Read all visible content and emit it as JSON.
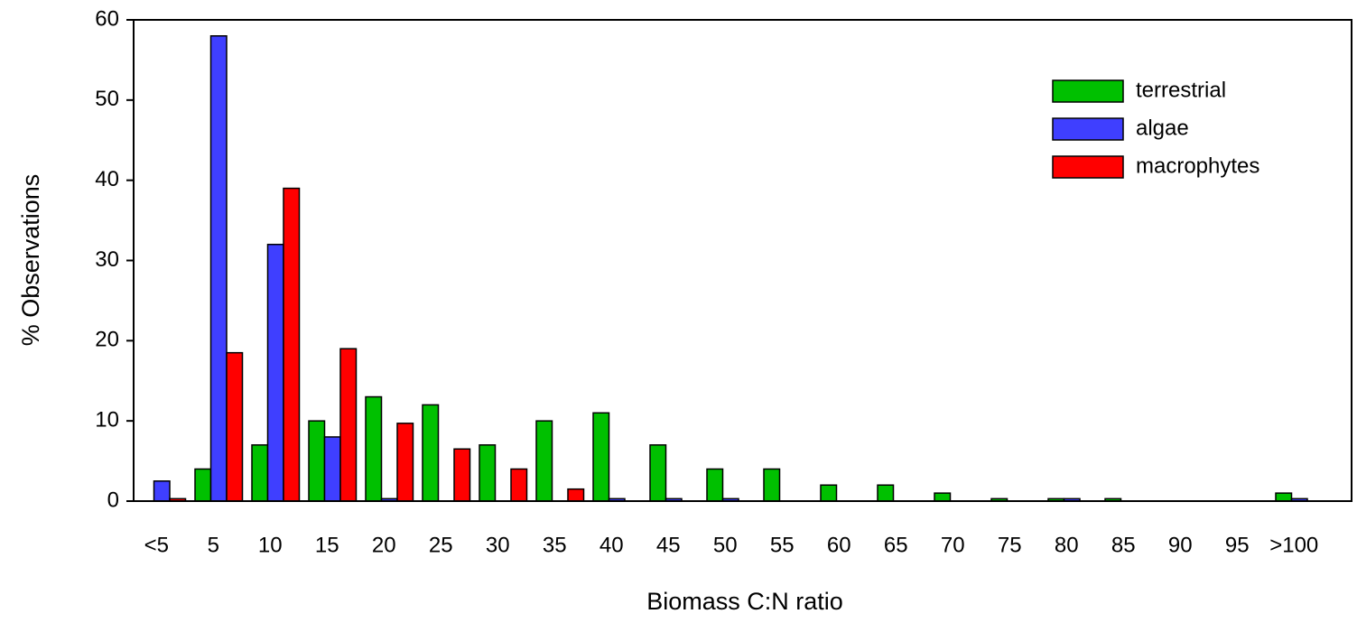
{
  "chart_data": {
    "type": "bar",
    "x_label": "Biomass C:N ratio",
    "y_label": "% Observations",
    "categories": [
      "<5",
      "5",
      "10",
      "15",
      "20",
      "25",
      "30",
      "35",
      "40",
      "45",
      "50",
      "55",
      "60",
      "65",
      "70",
      "75",
      "80",
      "85",
      "90",
      "95",
      ">100"
    ],
    "series": [
      {
        "name": "terrestrial",
        "color": "#00c000",
        "values": [
          0,
          4,
          7,
          10,
          13,
          12,
          7,
          10,
          11,
          7,
          4,
          4,
          2,
          2,
          1,
          0.3,
          0.3,
          0.3,
          0,
          0,
          1
        ]
      },
      {
        "name": "algae",
        "color": "#3f3fff",
        "values": [
          2.5,
          58,
          32,
          8,
          0.3,
          0,
          0,
          0,
          0.3,
          0.3,
          0.3,
          0,
          0,
          0,
          0,
          0,
          0.3,
          0,
          0,
          0,
          0.3
        ]
      },
      {
        "name": "macrophytes",
        "color": "#ff0000",
        "values": [
          0.3,
          18.5,
          39,
          19,
          9.7,
          6.5,
          4,
          1.5,
          0,
          0,
          0,
          0,
          0,
          0,
          0,
          0,
          0,
          0,
          0,
          0,
          0
        ]
      }
    ],
    "ylim": [
      0,
      60
    ],
    "yticks": [
      0,
      10,
      20,
      30,
      40,
      50,
      60
    ]
  }
}
